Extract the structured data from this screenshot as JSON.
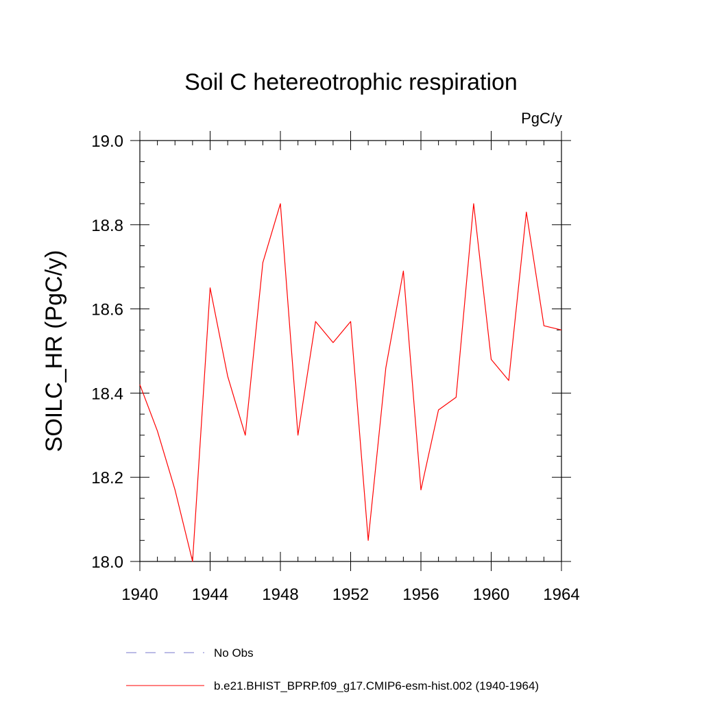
{
  "chart_data": {
    "type": "line",
    "title": "Soil C hetereotrophic respiration",
    "units_label": "PgC/y",
    "ylabel": "SOILC_HR  (PgC/y)",
    "xlabel": "",
    "xlim": [
      1940,
      1964
    ],
    "ylim": [
      18.0,
      19.0
    ],
    "x_ticks": [
      "1940",
      "1944",
      "1948",
      "1952",
      "1956",
      "1960",
      "1964"
    ],
    "y_ticks": [
      "18.0",
      "18.2",
      "18.4",
      "18.6",
      "18.8",
      "19.0"
    ],
    "grid": false,
    "series": [
      {
        "name": "b.e21.BHIST_BPRP.f09_g17.CMIP6-esm-hist.002 (1940-1964)",
        "color": "#ff0000",
        "style": "solid",
        "x": [
          1940,
          1941,
          1942,
          1943,
          1944,
          1945,
          1946,
          1947,
          1948,
          1949,
          1950,
          1951,
          1952,
          1953,
          1954,
          1955,
          1956,
          1957,
          1958,
          1959,
          1960,
          1961,
          1962,
          1963,
          1964
        ],
        "y": [
          18.42,
          18.31,
          18.17,
          18.0,
          18.65,
          18.44,
          18.3,
          18.71,
          18.85,
          18.3,
          18.57,
          18.52,
          18.57,
          18.05,
          18.46,
          18.69,
          18.17,
          18.36,
          18.39,
          18.85,
          18.48,
          18.43,
          18.83,
          18.56,
          18.55
        ]
      }
    ],
    "legend": {
      "placement": "bottom",
      "entries": [
        {
          "label": "No Obs",
          "color": "#7777cc",
          "style": "dashed"
        },
        {
          "label": "b.e21.BHIST_BPRP.f09_g17.CMIP6-esm-hist.002 (1940-1964)",
          "color": "#ff0000",
          "style": "solid"
        }
      ]
    }
  }
}
